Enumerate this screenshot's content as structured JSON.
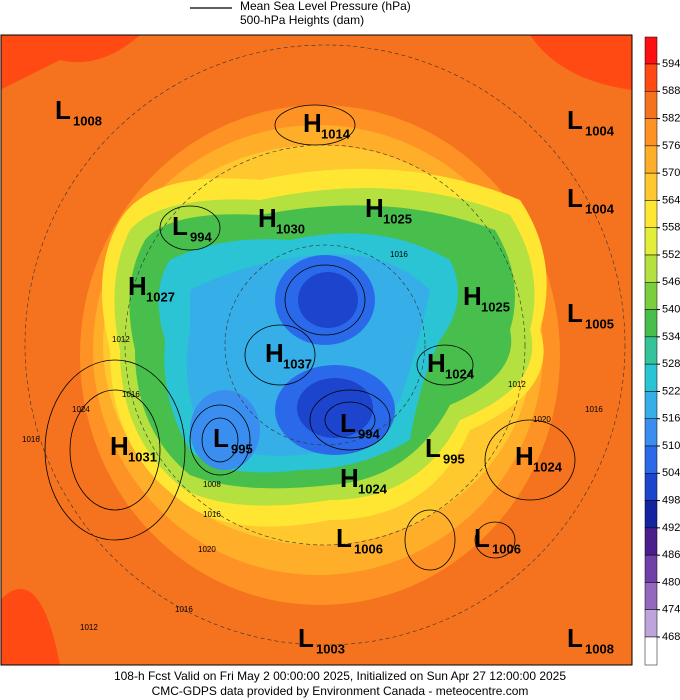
{
  "legend": {
    "line1": "Mean Sea Level Pressure (hPa)",
    "line2": "500-hPa Heights (dam)"
  },
  "colorbar": {
    "ticks": [
      594,
      588,
      582,
      576,
      570,
      564,
      558,
      552,
      546,
      540,
      534,
      528,
      522,
      516,
      510,
      504,
      498,
      492,
      486,
      480,
      474,
      468
    ],
    "colors": [
      "#ff1010",
      "#ff4a14",
      "#f5731e",
      "#ff9224",
      "#ffae2a",
      "#ffc82e",
      "#ffe633",
      "#e2ee3a",
      "#b4e040",
      "#7ccf3c",
      "#48be4c",
      "#34c49c",
      "#2ac4d4",
      "#36aee8",
      "#3a8ef0",
      "#2a6aea",
      "#1c44cc",
      "#1424a0",
      "#4a1e8c",
      "#7040a8",
      "#9468be",
      "#bfa4dc",
      "#ffffff"
    ]
  },
  "centers": [
    {
      "kind": "L",
      "value": 1008
    },
    {
      "kind": "H",
      "value": 1014
    },
    {
      "kind": "L",
      "value": 1004
    },
    {
      "kind": "L",
      "value": 994
    },
    {
      "kind": "H",
      "value": 1030
    },
    {
      "kind": "H",
      "value": 1025
    },
    {
      "kind": "L",
      "value": 1004
    },
    {
      "kind": "H",
      "value": 1027
    },
    {
      "kind": "H",
      "value": 1025
    },
    {
      "kind": "L",
      "value": 1005
    },
    {
      "kind": "H",
      "value": 1037
    },
    {
      "kind": "H",
      "value": 1024
    },
    {
      "kind": "H",
      "value": 1031
    },
    {
      "kind": "L",
      "value": 995
    },
    {
      "kind": "L",
      "value": 994
    },
    {
      "kind": "L",
      "value": 995
    },
    {
      "kind": "H",
      "value": 1024
    },
    {
      "kind": "H",
      "value": 1024
    },
    {
      "kind": "L",
      "value": 1006
    },
    {
      "kind": "L",
      "value": 1006
    },
    {
      "kind": "L",
      "value": 1003
    },
    {
      "kind": "L",
      "value": 1008
    }
  ],
  "isobar_labels": [
    1016,
    1024,
    1016,
    1012,
    1020,
    1012,
    1016,
    1016,
    1012,
    1020,
    1016,
    1008,
    1016
  ],
  "footer": {
    "line1": "108-h Fcst Valid on Fri May  2 00:00:00 2025, Initialized on Sun Apr 27 12:00:00 2025",
    "line2": "CMC-GDPS data provided by Environment Canada - meteocentre.com"
  }
}
